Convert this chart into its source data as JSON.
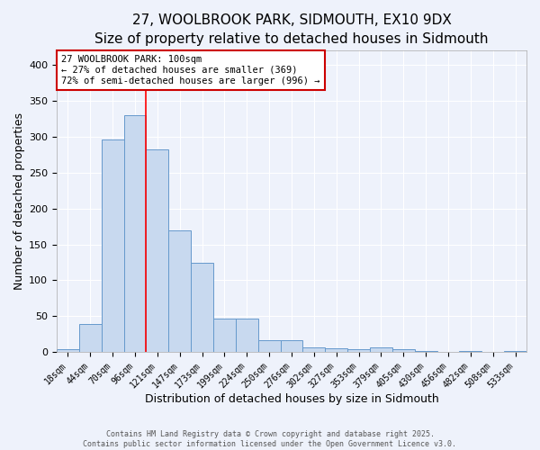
{
  "title": "27, WOOLBROOK PARK, SIDMOUTH, EX10 9DX",
  "subtitle": "Size of property relative to detached houses in Sidmouth",
  "xlabel": "Distribution of detached houses by size in Sidmouth",
  "ylabel": "Number of detached properties",
  "categories": [
    "18sqm",
    "44sqm",
    "70sqm",
    "96sqm",
    "121sqm",
    "147sqm",
    "173sqm",
    "199sqm",
    "224sqm",
    "250sqm",
    "276sqm",
    "302sqm",
    "327sqm",
    "353sqm",
    "379sqm",
    "405sqm",
    "430sqm",
    "456sqm",
    "482sqm",
    "508sqm",
    "533sqm"
  ],
  "values": [
    4,
    39,
    296,
    330,
    283,
    170,
    124,
    46,
    47,
    16,
    17,
    6,
    5,
    4,
    7,
    4,
    2,
    0,
    1,
    0,
    2
  ],
  "bar_color": "#c8d9ef",
  "bar_edge_color": "#6699cc",
  "red_line_x": 3.5,
  "annotation_title": "27 WOOLBROOK PARK: 100sqm",
  "annotation_line1": "← 27% of detached houses are smaller (369)",
  "annotation_line2": "72% of semi-detached houses are larger (996) →",
  "footer1": "Contains HM Land Registry data © Crown copyright and database right 2025.",
  "footer2": "Contains public sector information licensed under the Open Government Licence v3.0.",
  "ylim": [
    0,
    420
  ],
  "yticks": [
    0,
    50,
    100,
    150,
    200,
    250,
    300,
    350,
    400
  ],
  "bg_color": "#eef2fb",
  "plot_bg_color": "#eef2fb",
  "grid_color": "#ffffff",
  "title_fontsize": 11,
  "subtitle_fontsize": 10,
  "annotation_box_color": "#ffffff",
  "annotation_border_color": "#cc0000"
}
